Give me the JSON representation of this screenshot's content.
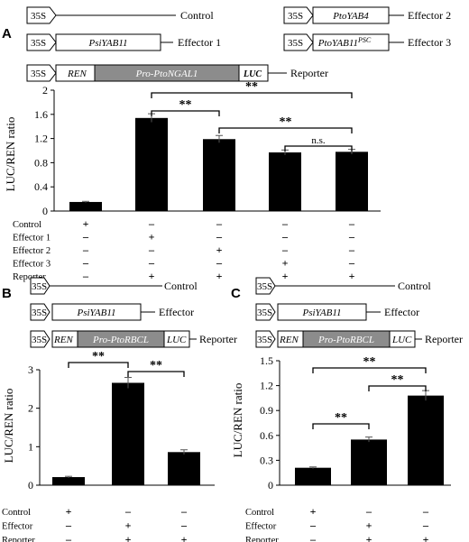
{
  "panels": {
    "A": {
      "label": "A"
    },
    "B": {
      "label": "B"
    },
    "C": {
      "label": "C"
    }
  },
  "constructs": {
    "promoter": "35S",
    "control": "Control",
    "effector_1": "Effector 1",
    "effector_2": "Effector 2",
    "effector_3": "Effector 3",
    "effector": "Effector",
    "reporter": "Reporter",
    "psiyab11": "PsiYAB11",
    "ptoyab4": "PtoYAB4",
    "ptoyab11_main": "PtoYAB11",
    "ptoyab11_sup": "PSC",
    "ren": "REN",
    "luc": "LUC",
    "pro_ngal1": "Pro-PtoNGAL1",
    "pro_rbcl": "Pro-PtoRBCL"
  },
  "colors": {
    "bar": "#000000",
    "box_gray": "#8c8c8c",
    "line": "#000000"
  },
  "chart_data": [
    {
      "panel": "A",
      "type": "bar",
      "ylabel": "LUC/REN ratio",
      "ylim": [
        0,
        2
      ],
      "yticks": [
        "0",
        "0.4",
        "0.8",
        "1.2",
        "1.6",
        "2"
      ],
      "ytick_values": [
        0,
        0.4,
        0.8,
        1.2,
        1.6,
        2
      ],
      "values": [
        0.15,
        1.54,
        1.19,
        0.97,
        0.98
      ],
      "errors": [
        0.01,
        0.07,
        0.06,
        0.04,
        0.04
      ],
      "significance": [
        {
          "from": 1,
          "to": 4,
          "label": "**"
        },
        {
          "from": 1,
          "to": 2,
          "label": "**"
        },
        {
          "from": 2,
          "to": 4,
          "label": "**"
        },
        {
          "from": 3,
          "to": 4,
          "label": "n.s."
        }
      ],
      "conditions": [
        {
          "name": "Control",
          "signs": [
            "+",
            "-",
            "-",
            "-",
            "-"
          ]
        },
        {
          "name": "Effector 1",
          "signs": [
            "-",
            "+",
            "-",
            "-",
            "-"
          ]
        },
        {
          "name": "Effector 2",
          "signs": [
            "-",
            "-",
            "+",
            "-",
            "-"
          ]
        },
        {
          "name": "Effector 3",
          "signs": [
            "-",
            "-",
            "-",
            "+",
            "-"
          ]
        },
        {
          "name": "Reporter",
          "signs": [
            "-",
            "+",
            "+",
            "+",
            "+"
          ]
        }
      ]
    },
    {
      "panel": "B",
      "type": "bar",
      "ylabel": "LUC/REN ratio",
      "ylim": [
        0,
        3
      ],
      "yticks": [
        "0",
        "1",
        "2",
        "3"
      ],
      "ytick_values": [
        0,
        1,
        2,
        3
      ],
      "values": [
        0.21,
        2.66,
        0.86
      ],
      "errors": [
        0.02,
        0.14,
        0.06
      ],
      "significance": [
        {
          "from": 0,
          "to": 1,
          "label": "**"
        },
        {
          "from": 1,
          "to": 2,
          "label": "**"
        }
      ],
      "conditions": [
        {
          "name": "Control",
          "signs": [
            "+",
            "-",
            "-"
          ]
        },
        {
          "name": "Effector",
          "signs": [
            "-",
            "+",
            "-"
          ]
        },
        {
          "name": "Reporter",
          "signs": [
            "-",
            "+",
            "+"
          ]
        }
      ]
    },
    {
      "panel": "C",
      "type": "bar",
      "ylabel": "LUC/REN ratio",
      "ylim": [
        0,
        1.5
      ],
      "yticks": [
        "0",
        "0.3",
        "0.6",
        "0.9",
        "1.2",
        "1.5"
      ],
      "ytick_values": [
        0,
        0.3,
        0.6,
        0.9,
        1.2,
        1.5
      ],
      "values": [
        0.21,
        0.55,
        1.08
      ],
      "errors": [
        0.01,
        0.03,
        0.06
      ],
      "significance": [
        {
          "from": 0,
          "to": 1,
          "label": "**"
        },
        {
          "from": 0,
          "to": 2,
          "label": "**"
        },
        {
          "from": 1,
          "to": 2,
          "label": "**"
        }
      ],
      "conditions": [
        {
          "name": "Control",
          "signs": [
            "+",
            "-",
            "-"
          ]
        },
        {
          "name": "Effector",
          "signs": [
            "-",
            "+",
            "-"
          ]
        },
        {
          "name": "Reporter",
          "signs": [
            "-",
            "+",
            "+"
          ]
        }
      ]
    }
  ]
}
